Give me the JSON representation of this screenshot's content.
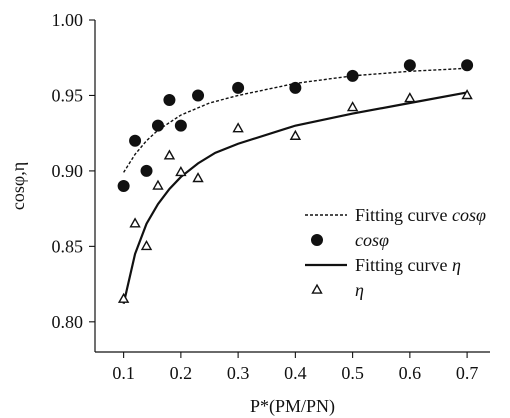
{
  "chart_data": {
    "type": "scatter",
    "title": "",
    "xlabel": "P*(PM/PN)",
    "ylabel": "cosφ,η",
    "x_ticks": [
      0.1,
      0.2,
      0.3,
      0.4,
      0.5,
      0.6,
      0.7
    ],
    "y_ticks": [
      0.8,
      0.85,
      0.9,
      0.95,
      1.0
    ],
    "x_tick_labels": [
      "0.1",
      "0.2",
      "0.3",
      "0.4",
      "0.5",
      "0.6",
      "0.7"
    ],
    "y_tick_labels": [
      "0.80",
      "0.85",
      "0.90",
      "0.95",
      "1.00"
    ],
    "xlim": [
      0.05,
      0.74
    ],
    "ylim": [
      0.78,
      1.0
    ],
    "grid": false,
    "legend_position": "bottom-right",
    "series": [
      {
        "name": "Fitting curve cosφ",
        "legend_prefix": "Fitting curve ",
        "legend_symbol": "cosφ",
        "type": "line",
        "line_style": "dashed",
        "marker": "none",
        "color": "#111111",
        "x": [
          0.1,
          0.12,
          0.14,
          0.16,
          0.18,
          0.2,
          0.25,
          0.3,
          0.4,
          0.5,
          0.6,
          0.7
        ],
        "y": [
          0.899,
          0.911,
          0.92,
          0.927,
          0.932,
          0.937,
          0.945,
          0.95,
          0.958,
          0.963,
          0.966,
          0.968
        ]
      },
      {
        "name": "cosφ",
        "legend_symbol": "cosφ",
        "type": "scatter",
        "marker": "filled-circle",
        "color": "#111111",
        "x": [
          0.1,
          0.12,
          0.14,
          0.16,
          0.18,
          0.2,
          0.23,
          0.3,
          0.4,
          0.5,
          0.6,
          0.7
        ],
        "y": [
          0.89,
          0.92,
          0.9,
          0.93,
          0.947,
          0.93,
          0.95,
          0.955,
          0.955,
          0.963,
          0.97,
          0.97
        ]
      },
      {
        "name": "Fitting curve η",
        "legend_prefix": "Fitting curve ",
        "legend_symbol": "η",
        "type": "line",
        "line_style": "solid",
        "marker": "none",
        "color": "#111111",
        "x": [
          0.1,
          0.12,
          0.14,
          0.16,
          0.18,
          0.2,
          0.23,
          0.26,
          0.3,
          0.4,
          0.5,
          0.6,
          0.7
        ],
        "y": [
          0.812,
          0.845,
          0.865,
          0.878,
          0.888,
          0.896,
          0.905,
          0.912,
          0.918,
          0.93,
          0.938,
          0.945,
          0.952
        ]
      },
      {
        "name": "η",
        "legend_symbol": "η",
        "type": "scatter",
        "marker": "hollow-triangle",
        "color": "#111111",
        "x": [
          0.1,
          0.12,
          0.14,
          0.16,
          0.18,
          0.2,
          0.23,
          0.3,
          0.4,
          0.5,
          0.6,
          0.7
        ],
        "y": [
          0.815,
          0.865,
          0.85,
          0.89,
          0.91,
          0.899,
          0.895,
          0.928,
          0.923,
          0.942,
          0.948,
          0.95
        ]
      }
    ]
  }
}
